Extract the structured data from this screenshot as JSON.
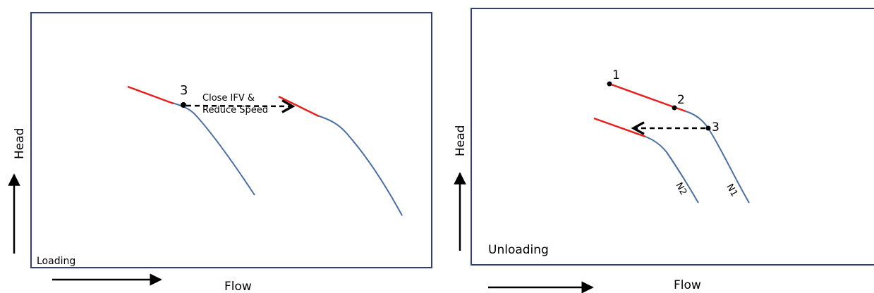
{
  "colors": {
    "frame": "#2e3e7e",
    "curve": "#4a6fa5",
    "surge_segment": "#e8201e",
    "arrow": "#000000"
  },
  "left_panel": {
    "title": "Loading",
    "axis_y_label": "Head",
    "axis_x_label": "Flow",
    "point_label": "3",
    "annotation_line1": "Close IFV &",
    "annotation_line2": "Reduce Speed"
  },
  "right_panel": {
    "title": "Unloading",
    "axis_y_label": "Head",
    "axis_x_label": "Flow",
    "point_1": "1",
    "point_2": "2",
    "point_3": "3",
    "curve_n1": "N1",
    "curve_n2": "N2"
  }
}
